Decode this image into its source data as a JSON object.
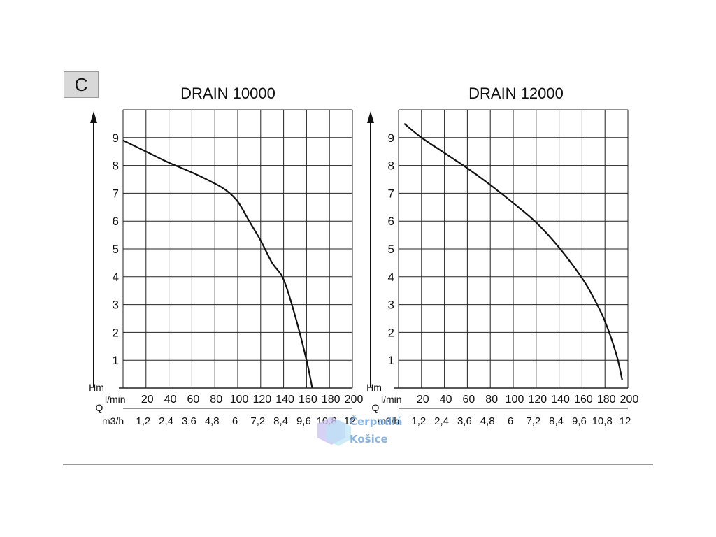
{
  "badge": {
    "label": "C"
  },
  "watermark": {
    "line1": "Čerpadlá",
    "line2": "Košice"
  },
  "chart_data": [
    {
      "type": "line",
      "title": "DRAIN 10000",
      "ylabel": "Hm",
      "xlabel": "Q",
      "xlabel_primary_unit": "l/min",
      "xlabel_secondary_unit": "m3/h",
      "x_ticks_primary": [
        "20",
        "40",
        "60",
        "80",
        "100",
        "120",
        "140",
        "160",
        "180",
        "200"
      ],
      "x_ticks_secondary": [
        "1,2",
        "2,4",
        "3,6",
        "4,8",
        "6",
        "7,2",
        "8,4",
        "9,6",
        "10,8",
        "12"
      ],
      "y_ticks": [
        "1",
        "2",
        "3",
        "4",
        "5",
        "6",
        "7",
        "8",
        "9"
      ],
      "xlim": [
        0,
        200
      ],
      "ylim": [
        0,
        10
      ],
      "grid": true,
      "series": [
        {
          "x": [
            0,
            20,
            40,
            60,
            80,
            90,
            100,
            110,
            120,
            130,
            140,
            150,
            160,
            165
          ],
          "y": [
            8.9,
            8.5,
            8.1,
            7.75,
            7.35,
            7.1,
            6.7,
            6.0,
            5.3,
            4.5,
            3.9,
            2.6,
            1.0,
            0
          ]
        }
      ]
    },
    {
      "type": "line",
      "title": "DRAIN 12000",
      "ylabel": "Hm",
      "xlabel": "Q",
      "xlabel_primary_unit": "l/min",
      "xlabel_secondary_unit": "m3/h",
      "x_ticks_primary": [
        "20",
        "40",
        "60",
        "80",
        "100",
        "120",
        "140",
        "160",
        "180",
        "200"
      ],
      "x_ticks_secondary": [
        "1,2",
        "2,4",
        "3,6",
        "4,8",
        "6",
        "7,2",
        "8,4",
        "9,6",
        "10,8",
        "12"
      ],
      "y_ticks": [
        "1",
        "2",
        "3",
        "4",
        "5",
        "6",
        "7",
        "8",
        "9"
      ],
      "xlim": [
        0,
        200
      ],
      "ylim": [
        0,
        10
      ],
      "grid": true,
      "series": [
        {
          "x": [
            5,
            20,
            40,
            60,
            80,
            100,
            120,
            140,
            160,
            170,
            180,
            190,
            195
          ],
          "y": [
            9.5,
            9.0,
            8.45,
            7.9,
            7.3,
            6.65,
            5.95,
            5.05,
            3.95,
            3.25,
            2.4,
            1.2,
            0.3
          ]
        }
      ]
    }
  ]
}
